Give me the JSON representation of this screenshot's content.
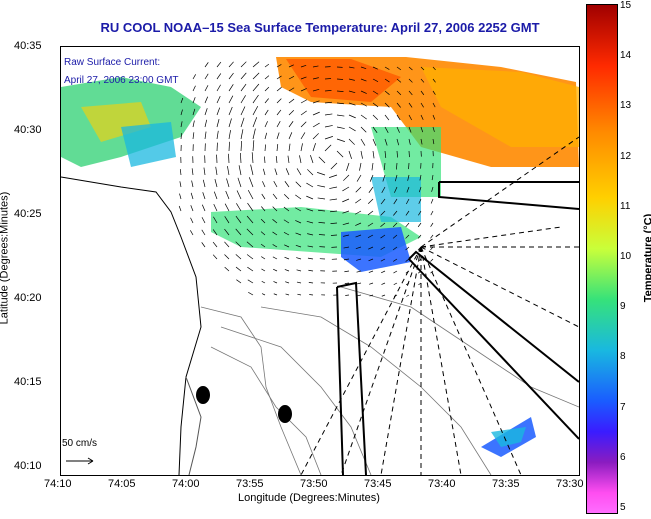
{
  "title": "RU COOL  NOAA–15  Sea Surface Temperature:  April 27, 2006 2252 GMT",
  "raw_surface_current": "Raw Surface Current:",
  "current_time": "April 27, 2006 23:00 GMT",
  "y_axis_label": "Latitude (Degrees:Minutes)",
  "x_axis_label": "Longitude (Degrees:Minutes)",
  "colorbar_label": "Temperature (°C)",
  "scale_label": "50 cm/s",
  "y_ticks": [
    "40:35",
    "40:30",
    "40:25",
    "40:20",
    "40:15",
    "40:10"
  ],
  "x_ticks": [
    "74:10",
    "74:05",
    "74:00",
    "73:55",
    "73:50",
    "73:45",
    "73:40",
    "73:35",
    "73:30"
  ],
  "colorbar_ticks": [
    "15",
    "14",
    "13",
    "12",
    "11",
    "10",
    "9",
    "8",
    "7",
    "6",
    "5"
  ],
  "colors": {
    "title": "#1b1ba8",
    "sst_warm": "#ff8a00",
    "sst_cool": "#1a5cff"
  }
}
